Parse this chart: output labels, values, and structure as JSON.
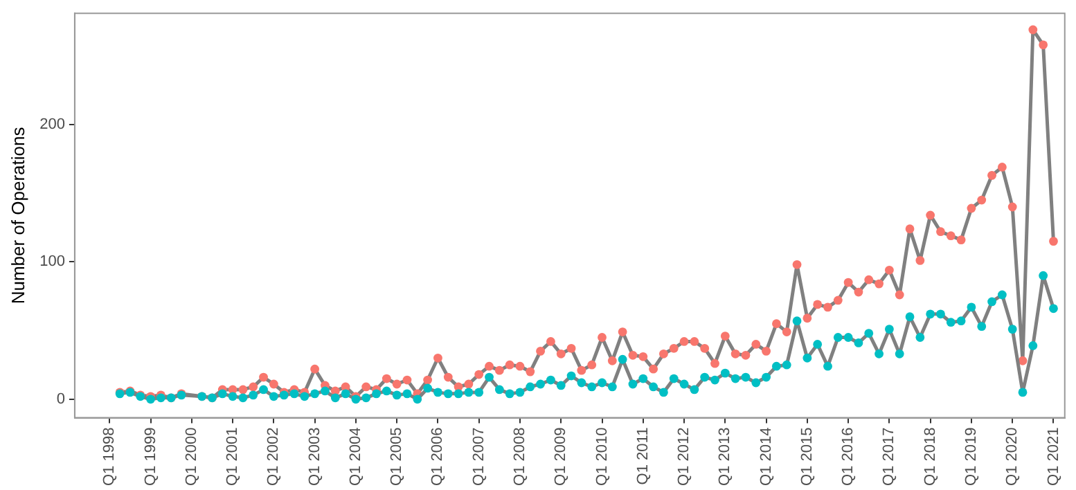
{
  "chart_data": {
    "type": "line",
    "ylabel": "Number of Operations",
    "categories": [
      "Q1 1998",
      null,
      null,
      null,
      "Q1 1999",
      null,
      null,
      null,
      "Q1 2000",
      null,
      null,
      null,
      "Q1 2001",
      null,
      null,
      null,
      "Q1 2002",
      null,
      null,
      null,
      "Q1 2003",
      null,
      null,
      null,
      "Q1 2004",
      null,
      null,
      null,
      "Q1 2005",
      null,
      null,
      null,
      "Q1 2006",
      null,
      null,
      null,
      "Q1 2007",
      null,
      null,
      null,
      "Q1 2008",
      null,
      null,
      null,
      "Q1 2009",
      null,
      null,
      null,
      "Q1 2010",
      null,
      null,
      null,
      "Q1 2011",
      null,
      null,
      null,
      "Q1 2012",
      null,
      null,
      null,
      "Q1 2013",
      null,
      null,
      null,
      "Q1 2014",
      null,
      null,
      null,
      "Q1 2015",
      null,
      null,
      null,
      "Q1 2016",
      null,
      null,
      null,
      "Q1 2017",
      null,
      null,
      null,
      "Q1 2018",
      null,
      null,
      null,
      "Q1 2019",
      null,
      null,
      null,
      "Q1 2020",
      null,
      null,
      null,
      "Q1 2021"
    ],
    "series": [
      {
        "color": "#00bfc4",
        "values": [
          null,
          4,
          5,
          2,
          0,
          1,
          1,
          3,
          null,
          2,
          1,
          4,
          2,
          1,
          3,
          7,
          2,
          3,
          4,
          2,
          4,
          6,
          1,
          4,
          0,
          1,
          4,
          6,
          3,
          4,
          0,
          8,
          5,
          4,
          4,
          5,
          5,
          16,
          7,
          4,
          5,
          9,
          11,
          14,
          10,
          17,
          12,
          9,
          12,
          9,
          29,
          11,
          15,
          9,
          5,
          15,
          11,
          7,
          16,
          14,
          19,
          15,
          16,
          12,
          16,
          24,
          25,
          57,
          30,
          40,
          24,
          45,
          45,
          41,
          48,
          33,
          51,
          33,
          60,
          45,
          62,
          62,
          56,
          57,
          67,
          53,
          71,
          76,
          51,
          5,
          39,
          90,
          66
        ]
      },
      {
        "color": "#f8766d",
        "values": [
          null,
          5,
          6,
          3,
          2,
          3,
          1,
          4,
          null,
          2,
          1,
          7,
          7,
          7,
          9,
          16,
          11,
          5,
          7,
          5,
          22,
          10,
          6,
          9,
          2,
          9,
          7,
          15,
          11,
          14,
          4,
          14,
          30,
          16,
          9,
          11,
          18,
          24,
          21,
          25,
          24,
          20,
          35,
          42,
          33,
          37,
          21,
          25,
          45,
          28,
          49,
          32,
          31,
          22,
          33,
          37,
          42,
          42,
          37,
          26,
          46,
          33,
          32,
          40,
          35,
          55,
          49,
          98,
          59,
          69,
          67,
          72,
          85,
          78,
          87,
          84,
          94,
          76,
          124,
          101,
          134,
          122,
          119,
          116,
          139,
          145,
          163,
          169,
          140,
          28,
          269,
          258,
          115
        ]
      }
    ],
    "ylim": [
      -13.5,
      281
    ],
    "yticks": [
      0,
      100,
      200
    ],
    "grid": false,
    "legend": false,
    "marker": "circle",
    "line_style": "solid"
  }
}
